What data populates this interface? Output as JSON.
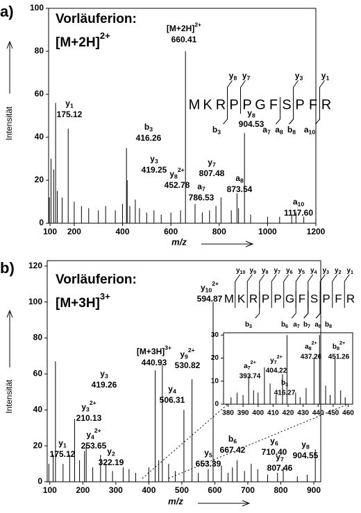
{
  "chart_data": [
    {
      "type": "stem",
      "panel": "a)",
      "title": "Vorläuferion:",
      "precursor": "[M+2H]",
      "precursor_charge": "2+",
      "xlabel": "m/z",
      "ylabel": "Intensität",
      "xlim": [
        94,
        1200
      ],
      "ylim": [
        0,
        100
      ],
      "xticks": [
        100,
        200,
        400,
        600,
        800,
        1000,
        1200
      ],
      "yticks": [
        0,
        20,
        40,
        60,
        80,
        100
      ],
      "color": "#000000",
      "x": [
        97,
        104,
        115,
        123,
        130,
        150,
        175.12,
        200,
        230,
        260,
        300,
        330,
        370,
        400,
        416.26,
        419.25,
        430,
        452.78,
        470,
        500,
        530,
        560,
        600,
        640,
        660.41,
        700,
        730,
        760,
        786.53,
        807.48,
        850,
        873.54,
        880,
        904.53,
        930,
        1000,
        1050,
        1100,
        1117.6,
        1150
      ],
      "values": [
        12,
        30,
        25,
        56,
        15,
        12,
        44,
        10,
        8,
        7,
        6,
        8,
        6,
        9,
        35,
        20,
        8,
        11,
        7,
        5,
        6,
        4,
        5,
        6,
        80,
        9,
        5,
        6,
        8,
        12,
        6,
        14,
        7,
        42,
        4,
        3,
        3,
        4,
        5,
        3
      ],
      "annotations": [
        {
          "ion": "y",
          "sub": "1",
          "mz": "175.12"
        },
        {
          "ion": "b",
          "sub": "3",
          "mz": "416.26"
        },
        {
          "ion": "y",
          "sub": "3",
          "mz": "419.25"
        },
        {
          "ion": "y",
          "sub": "8",
          "sup": "2+",
          "mz": "452.78"
        },
        {
          "ion": "[M+2H]",
          "sup": "2+",
          "mz": "660.41"
        },
        {
          "ion": "a",
          "sub": "7",
          "mz": "786.53"
        },
        {
          "ion": "y",
          "sub": "7",
          "mz": "807.48"
        },
        {
          "ion": "a",
          "sub": "8",
          "mz": "873.54"
        },
        {
          "ion": "y",
          "sub": "8",
          "mz": "904.53"
        },
        {
          "ion": "a",
          "sub": "10",
          "mz": "1117.60"
        }
      ],
      "sequence": [
        "M",
        "K",
        "R",
        "P",
        "P",
        "G",
        "F",
        "S",
        "P",
        "F",
        "R"
      ],
      "fragments_top": [
        {
          "ion": "y",
          "sub": "8"
        },
        {
          "ion": "y",
          "sub": "7"
        },
        {
          "ion": "y",
          "sub": "3"
        },
        {
          "ion": "y",
          "sub": "1"
        }
      ],
      "fragments_bottom": [
        {
          "ion": "b",
          "sub": "3"
        },
        {
          "ion": "a",
          "sub": "7"
        },
        {
          "ion": "a",
          "sub": "8"
        },
        {
          "ion": "b",
          "sub": "8"
        },
        {
          "ion": "a",
          "sub": "10"
        }
      ]
    },
    {
      "type": "stem",
      "panel": "b)",
      "title": "Vorläuferion:",
      "precursor": "[M+3H]",
      "precursor_charge": "3+",
      "xlabel": "m/z",
      "ylabel": "Intensität",
      "xlim": [
        92,
        921
      ],
      "ylim": [
        0,
        123
      ],
      "xticks": [
        100,
        200,
        300,
        400,
        500,
        600,
        700,
        800,
        900
      ],
      "yticks": [
        0,
        20,
        40,
        60,
        80,
        100,
        120
      ],
      "color": "#000000",
      "x": [
        97,
        110,
        117,
        140,
        160,
        175.12,
        190,
        205,
        210.13,
        230,
        253.65,
        270,
        290,
        322.19,
        340,
        360,
        400,
        419.26,
        430,
        440.93,
        460,
        480,
        506.31,
        530.82,
        550,
        580,
        594.87,
        620,
        640,
        653.39,
        667.42,
        690,
        710.4,
        730,
        760,
        790,
        807.46,
        850,
        880,
        904.55
      ],
      "values": [
        10,
        15,
        67,
        10,
        15,
        35,
        12,
        17,
        20,
        8,
        15,
        10,
        6,
        8,
        7,
        5,
        8,
        62,
        12,
        65,
        10,
        6,
        40,
        57,
        5,
        7,
        100,
        9,
        5,
        8,
        12,
        6,
        10,
        7,
        4,
        5,
        8,
        3,
        4,
        18
      ],
      "annotations": [
        {
          "ion": "y",
          "sub": "1",
          "mz": "175.12"
        },
        {
          "ion": "y",
          "sub": "3",
          "sup": "2+",
          "mz": "210.13"
        },
        {
          "ion": "y",
          "sub": "4",
          "sup": "2+",
          "mz": "253.65"
        },
        {
          "ion": "y",
          "sub": "2",
          "mz": "322.19"
        },
        {
          "ion": "y",
          "sub": "3",
          "mz": "419.26"
        },
        {
          "ion": "[M+3H]",
          "sup": "3+",
          "mz": "440.93"
        },
        {
          "ion": "y",
          "sub": "4",
          "mz": "506.31"
        },
        {
          "ion": "y",
          "sub": "9",
          "sup": "2+",
          "mz": "530.82"
        },
        {
          "ion": "y",
          "sub": "10",
          "sup": "2+",
          "mz": "594.87"
        },
        {
          "ion": "y",
          "sub": "5",
          "mz": "653.39"
        },
        {
          "ion": "b",
          "sub": "6",
          "mz": "667.42"
        },
        {
          "ion": "y",
          "sub": "6",
          "mz": "710.40"
        },
        {
          "ion": "y",
          "sub": "7",
          "mz": "807.46"
        },
        {
          "ion": "y",
          "sub": "8",
          "mz": "904.55"
        }
      ],
      "sequence": [
        "M",
        "K",
        "R",
        "P",
        "P",
        "G",
        "F",
        "S",
        "P",
        "F",
        "R"
      ],
      "fragments_top": [
        {
          "ion": "y",
          "sub": "10"
        },
        {
          "ion": "y",
          "sub": "9"
        },
        {
          "ion": "y",
          "sub": "8"
        },
        {
          "ion": "y",
          "sub": "7"
        },
        {
          "ion": "y",
          "sub": "6"
        },
        {
          "ion": "y",
          "sub": "5"
        },
        {
          "ion": "y",
          "sub": "4"
        },
        {
          "ion": "y",
          "sub": "3"
        },
        {
          "ion": "y",
          "sub": "2"
        },
        {
          "ion": "y",
          "sub": "1"
        }
      ],
      "fragments_bottom": [
        {
          "ion": "b",
          "sub": "3"
        },
        {
          "ion": "b",
          "sub": "6"
        },
        {
          "ion": "a",
          "sub": "7"
        },
        {
          "ion": "b",
          "sub": "7"
        },
        {
          "ion": "a",
          "sub": "8"
        },
        {
          "ion": "b",
          "sub": "8"
        }
      ]
    },
    {
      "type": "stem",
      "xlim": [
        377,
        463
      ],
      "ylim": [
        0,
        31
      ],
      "xticks": [
        380,
        390,
        400,
        410,
        420,
        430,
        440,
        450,
        460
      ],
      "yticks": [
        0,
        10,
        20,
        30
      ],
      "color": "#000000",
      "x": [
        382,
        386,
        390,
        393.74,
        397,
        400,
        404.22,
        408,
        412,
        416.27,
        419.26,
        425,
        428,
        432,
        437.26,
        440.93,
        445,
        448,
        451.26,
        455,
        458
      ],
      "values": [
        3,
        5,
        4,
        12,
        6,
        5,
        16,
        9,
        4,
        13,
        30,
        5,
        3,
        7,
        20,
        30,
        8,
        4,
        21,
        6,
        3
      ],
      "annotations": [
        {
          "ion": "a",
          "sub": "7",
          "sup": "2+",
          "mz": "393.74"
        },
        {
          "ion": "y",
          "sub": "7",
          "sup": "2+",
          "mz": "404.22"
        },
        {
          "ion": "b",
          "sub": "3",
          "mz": "416.27"
        },
        {
          "ion": "a",
          "sub": "8",
          "sup": "2+",
          "mz": "437.26"
        },
        {
          "ion": "b",
          "sub": "8",
          "sup": "2+",
          "mz": "451.26"
        }
      ]
    }
  ]
}
